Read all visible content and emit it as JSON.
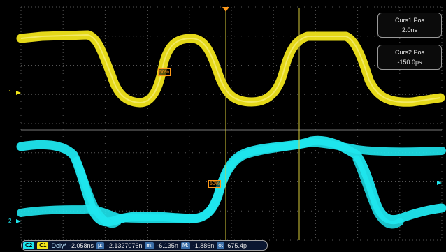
{
  "cursors": {
    "curs1": {
      "title": "Curs1 Pos",
      "value": "2.0ns"
    },
    "curs2": {
      "title": "Curs2 Pos",
      "value": "-150.0ps"
    }
  },
  "channels": {
    "ch1": {
      "label": "1",
      "color": "#f0e41a"
    },
    "ch2": {
      "label": "2",
      "color": "#1fe6ee"
    }
  },
  "ref_markers": {
    "ch1_50": "50%",
    "ch2_50": "50%"
  },
  "measurement": {
    "src1": "C2",
    "src2": "C1",
    "name": "Dely*",
    "value": "-2.058ns",
    "mean_sym": "μ:",
    "mean": "-2.1327076n",
    "min_sym": "m:",
    "min": "-6.135n",
    "max_sym": "M:",
    "max": "-1.886n",
    "sd_sym": "σ:",
    "sd": "675.4p"
  },
  "colors": {
    "grid": "#555555",
    "cursor": "#d8cc3a",
    "trigger": "#ff9a1a",
    "right_arrow": "#1fe6ee"
  }
}
